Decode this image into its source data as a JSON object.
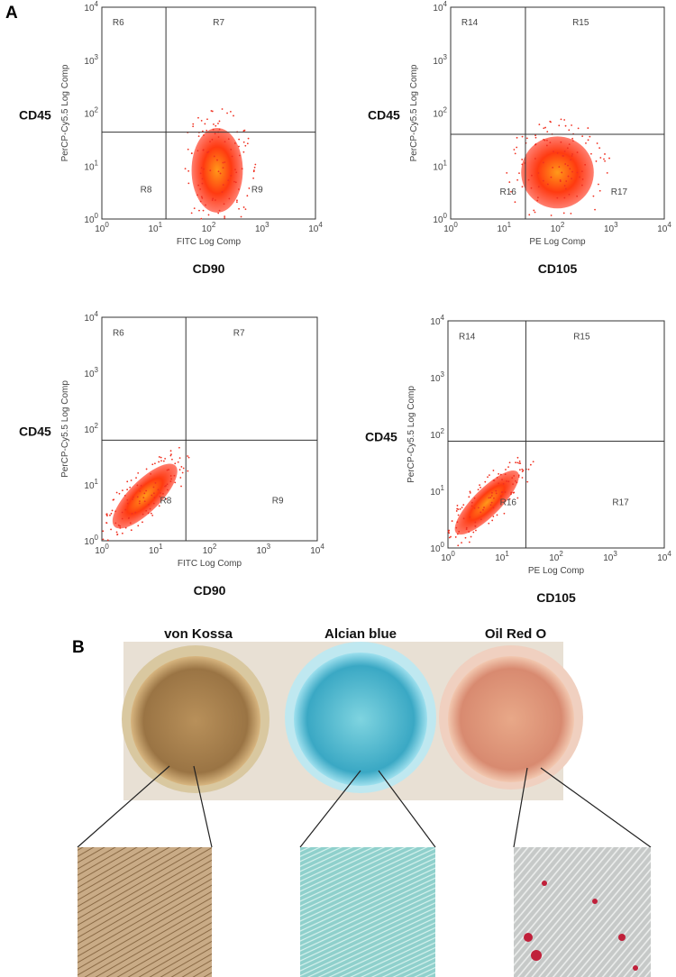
{
  "panel_labels": [
    "A",
    "B"
  ],
  "tick_base": "10",
  "tick_exponents": [
    "0",
    "1",
    "2",
    "3",
    "4"
  ],
  "flow_plots": [
    {
      "y_marker": "CD45",
      "y_axis_label": "PerCP-Cy5.5 Log Comp",
      "x_axis_label": "FITC Log Comp",
      "x_marker": "CD90",
      "regions": [
        "R6",
        "R7",
        "R8",
        "R9"
      ]
    },
    {
      "y_marker": "CD45",
      "y_axis_label": "PerCP-Cy5.5 Log Comp",
      "x_axis_label": "PE Log Comp",
      "x_marker": "CD105",
      "regions": [
        "R14",
        "R15",
        "R16",
        "R17"
      ]
    },
    {
      "y_marker": "CD45",
      "y_axis_label": "PerCP-Cy5.5 Log Comp",
      "x_axis_label": "FITC Log Comp",
      "x_marker": "CD90",
      "regions": [
        "R6",
        "R7",
        "R8",
        "R9"
      ]
    },
    {
      "y_marker": "CD45",
      "y_axis_label": "PerCP-Cy5.5 Log Comp",
      "x_axis_label": "PE Log Comp",
      "x_marker": "CD105",
      "regions": [
        "R14",
        "R15",
        "R16",
        "R17"
      ]
    }
  ],
  "stains": [
    "von Kossa",
    "Alcian blue",
    "Oil Red O"
  ]
}
